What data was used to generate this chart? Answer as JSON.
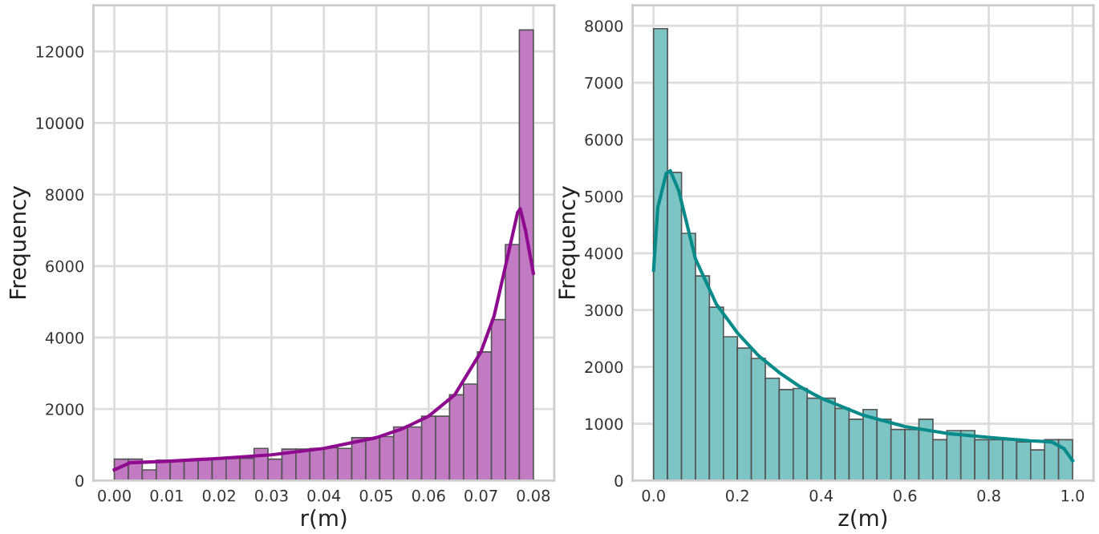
{
  "chart_data": [
    {
      "type": "histogram",
      "xlabel": "r(m)",
      "ylabel": "Frequency",
      "grid": true,
      "xlim": [
        -0.004,
        0.084
      ],
      "ylim": [
        0,
        13290
      ],
      "xticks": [
        {
          "value": 0,
          "label": "0.00"
        },
        {
          "value": 0.01,
          "label": "0.01"
        },
        {
          "value": 0.02,
          "label": "0.02"
        },
        {
          "value": 0.03,
          "label": "0.03"
        },
        {
          "value": 0.04,
          "label": "0.04"
        },
        {
          "value": 0.05,
          "label": "0.05"
        },
        {
          "value": 0.06,
          "label": "0.06"
        },
        {
          "value": 0.07,
          "label": "0.07"
        },
        {
          "value": 0.08,
          "label": "0.08"
        }
      ],
      "yticks": [
        0,
        2000,
        4000,
        6000,
        8000,
        10000,
        12000
      ],
      "series": [
        {
          "color": "#c27bc2",
          "bins": [
            0,
            0.00267,
            0.00533,
            0.008,
            0.01067,
            0.01333,
            0.016,
            0.01867,
            0.02133,
            0.024,
            0.02667,
            0.02933,
            0.032,
            0.03467,
            0.03733,
            0.04,
            0.04267,
            0.04533,
            0.048,
            0.05067,
            0.05333,
            0.056,
            0.05867,
            0.06133,
            0.064,
            0.06667,
            0.06933,
            0.072,
            0.07467,
            0.07733,
            0.08
          ],
          "values": [
            600,
            600,
            300,
            570,
            570,
            570,
            600,
            620,
            620,
            620,
            900,
            600,
            880,
            880,
            900,
            920,
            900,
            1200,
            1200,
            1230,
            1500,
            1500,
            1800,
            1800,
            2400,
            2700,
            3600,
            4500,
            6600,
            12600
          ]
        },
        {
          "type": "line",
          "color": "#8e0a8e",
          "x": [
            0,
            0.003,
            0.01,
            0.02,
            0.03,
            0.04,
            0.05,
            0.055,
            0.06,
            0.065,
            0.07,
            0.0725,
            0.075,
            0.077,
            0.0775,
            0.0785,
            0.08
          ],
          "values": [
            300,
            500,
            540,
            620,
            720,
            900,
            1200,
            1450,
            1800,
            2400,
            3600,
            4600,
            6200,
            7500,
            7600,
            7000,
            5800
          ]
        }
      ]
    },
    {
      "type": "histogram",
      "xlabel": "z(m)",
      "ylabel": "Frequency",
      "grid": true,
      "xlim": [
        -0.05,
        1.05
      ],
      "ylim": [
        0,
        8360
      ],
      "xticks": [
        {
          "value": 0,
          "label": "0.0"
        },
        {
          "value": 0.2,
          "label": "0.2"
        },
        {
          "value": 0.4,
          "label": "0.4"
        },
        {
          "value": 0.6,
          "label": "0.6"
        },
        {
          "value": 0.8,
          "label": "0.8"
        },
        {
          "value": 1,
          "label": "1.0"
        }
      ],
      "yticks": [
        0,
        1000,
        2000,
        3000,
        4000,
        5000,
        6000,
        7000,
        8000
      ],
      "series": [
        {
          "color": "#7dc5c5",
          "bins": [
            0,
            0.0333,
            0.0667,
            0.1,
            0.1333,
            0.1667,
            0.2,
            0.2333,
            0.2667,
            0.3,
            0.3333,
            0.3667,
            0.4,
            0.4333,
            0.4667,
            0.5,
            0.5333,
            0.5667,
            0.6,
            0.6333,
            0.6667,
            0.7,
            0.7333,
            0.7667,
            0.8,
            0.8333,
            0.8667,
            0.9,
            0.9333,
            0.9667,
            1
          ],
          "values": [
            7950,
            5420,
            4350,
            3600,
            3050,
            2530,
            2330,
            2150,
            1800,
            1600,
            1620,
            1450,
            1450,
            1270,
            1080,
            1250,
            1080,
            900,
            900,
            1080,
            720,
            880,
            880,
            720,
            720,
            720,
            680,
            540,
            720,
            720
          ]
        },
        {
          "type": "line",
          "color": "#078a8a",
          "x": [
            0,
            0.01,
            0.03,
            0.04,
            0.06,
            0.08,
            0.1,
            0.15,
            0.2,
            0.25,
            0.3,
            0.35,
            0.4,
            0.5,
            0.6,
            0.7,
            0.8,
            0.9,
            0.95,
            0.98,
            1
          ],
          "values": [
            3700,
            4800,
            5400,
            5450,
            5100,
            4500,
            3900,
            3100,
            2600,
            2200,
            1900,
            1650,
            1450,
            1150,
            950,
            830,
            760,
            700,
            680,
            560,
            350
          ]
        }
      ]
    }
  ]
}
